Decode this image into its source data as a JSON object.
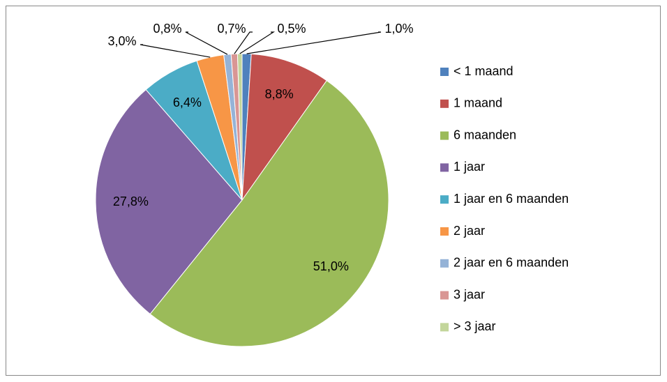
{
  "chart_data": {
    "type": "pie",
    "categories": [
      "< 1 maand",
      "1 maand",
      "6 maanden",
      "1 jaar",
      "1 jaar en 6 maanden",
      "2 jaar",
      "2 jaar en 6 maanden",
      "3 jaar",
      "> 3 jaar"
    ],
    "values": [
      1.0,
      8.8,
      51.0,
      27.8,
      6.4,
      3.0,
      0.8,
      0.7,
      0.5
    ],
    "value_labels": [
      "1,0%",
      "8,8%",
      "51,0%",
      "27,8%",
      "6,4%",
      "3,0%",
      "0,8%",
      "0,7%",
      "0,5%"
    ],
    "colors": [
      "#4f81bd",
      "#c0504d",
      "#9bbb59",
      "#8064a2",
      "#4bacc6",
      "#f79646",
      "#95b3d7",
      "#d99694",
      "#c3d69b"
    ],
    "legend": "right"
  }
}
